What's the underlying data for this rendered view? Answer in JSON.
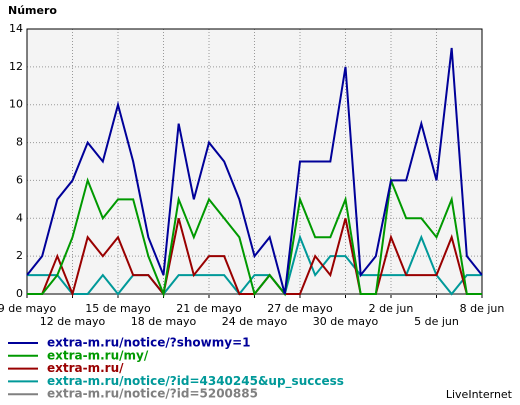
{
  "chart_data": {
    "type": "line",
    "title": "Número",
    "source": "LiveInternet",
    "categories": [
      "9 de mayo",
      null,
      null,
      "12 de mayo",
      null,
      null,
      "15 de mayo",
      null,
      null,
      "18 de mayo",
      null,
      null,
      "21 de mayo",
      null,
      null,
      "24 de mayo",
      null,
      null,
      "27 de mayo",
      null,
      null,
      "30 de mayo",
      null,
      null,
      "2 de jun",
      null,
      null,
      "5 de jun",
      null,
      null,
      "8 de jun"
    ],
    "series": [
      {
        "name": "extra-m.ru/notice/?showmy=1",
        "color": "#000099",
        "values": [
          1,
          2,
          5,
          6,
          8,
          7,
          10,
          7,
          3,
          1,
          9,
          5,
          8,
          7,
          5,
          2,
          3,
          0,
          7,
          7,
          7,
          12,
          1,
          2,
          6,
          6,
          9,
          6,
          13,
          2,
          1
        ]
      },
      {
        "name": "extra-m.ru/my/",
        "color": "#009900",
        "values": [
          0,
          0,
          1,
          3,
          6,
          4,
          5,
          5,
          2,
          0,
          5,
          3,
          5,
          4,
          3,
          0,
          1,
          0,
          5,
          3,
          3,
          5,
          0,
          0,
          6,
          4,
          4,
          3,
          5,
          0,
          0
        ]
      },
      {
        "name": "extra-m.ru/",
        "color": "#990000",
        "values": [
          0,
          0,
          2,
          0,
          3,
          2,
          3,
          1,
          1,
          0,
          4,
          1,
          2,
          2,
          0,
          0,
          1,
          0,
          0,
          2,
          1,
          4,
          0,
          0,
          3,
          1,
          1,
          1,
          3,
          0,
          0
        ]
      },
      {
        "name": "extra-m.ru/notice/?id=4340245&up_success",
        "color": "#009999",
        "values": [
          1,
          1,
          1,
          0,
          0,
          1,
          0,
          1,
          1,
          0,
          1,
          1,
          1,
          1,
          0,
          1,
          1,
          0,
          3,
          1,
          2,
          2,
          1,
          1,
          1,
          1,
          3,
          1,
          0,
          1,
          1
        ]
      },
      {
        "name": "extra-m.ru/notice/?id=5200885",
        "color": "#808080",
        "values": [
          0,
          0,
          0,
          0,
          0,
          0,
          0,
          0,
          0,
          0,
          0,
          0,
          0,
          0,
          0,
          0,
          0,
          0,
          0,
          0,
          0,
          0,
          0,
          0,
          0,
          0,
          0,
          0,
          0,
          0,
          0
        ]
      }
    ],
    "ylim": [
      0,
      14
    ],
    "yticks": [
      0,
      2,
      4,
      6,
      8,
      10,
      12,
      14
    ],
    "grid": true
  }
}
